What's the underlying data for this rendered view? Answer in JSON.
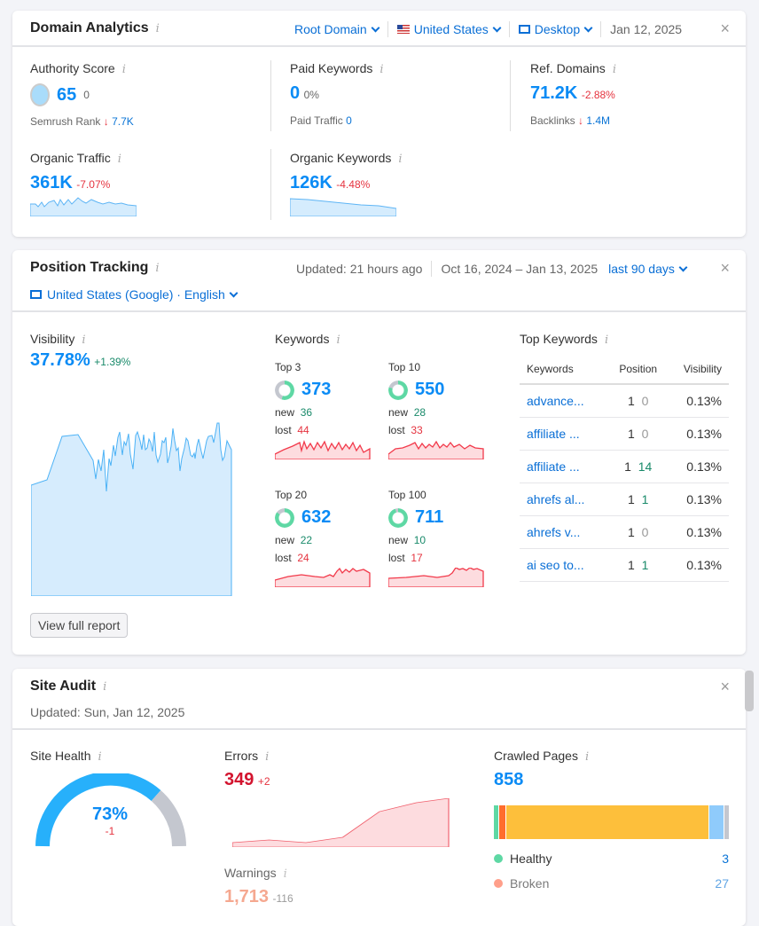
{
  "domain_analytics": {
    "title": "Domain Analytics",
    "root_domain": "Root Domain",
    "country": "United States",
    "device": "Desktop",
    "date": "Jan 12, 2025",
    "authority": {
      "label": "Authority Score",
      "value": "65",
      "change": "0",
      "rank_label": "Semrush Rank",
      "rank_value": "7.7K"
    },
    "paid": {
      "label": "Paid Keywords",
      "value": "0",
      "change": "0%",
      "traffic_label": "Paid Traffic",
      "traffic_value": "0"
    },
    "ref": {
      "label": "Ref. Domains",
      "value": "71.2K",
      "change": "-2.88%",
      "backlinks_label": "Backlinks",
      "backlinks_value": "1.4M"
    },
    "organic_traffic": {
      "label": "Organic Traffic",
      "value": "361K",
      "change": "-7.07%"
    },
    "organic_keywords": {
      "label": "Organic Keywords",
      "value": "126K",
      "change": "-4.48%"
    }
  },
  "position_tracking": {
    "title": "Position Tracking",
    "updated": "Updated: 21 hours ago",
    "range": "Oct 16, 2024 – Jan 13, 2025",
    "period": "last 90 days",
    "location": "United States (Google) · English",
    "visibility": {
      "label": "Visibility",
      "value": "37.78%",
      "change": "+1.39%"
    },
    "keywords": {
      "label": "Keywords",
      "groups": [
        {
          "label": "Top 3",
          "value": "373",
          "new": "36",
          "lost": "44",
          "fill": 0.55
        },
        {
          "label": "Top 10",
          "value": "550",
          "new": "28",
          "lost": "33",
          "fill": 0.8
        },
        {
          "label": "Top 20",
          "value": "632",
          "new": "22",
          "lost": "24",
          "fill": 0.85
        },
        {
          "label": "Top 100",
          "value": "711",
          "new": "10",
          "lost": "17",
          "fill": 0.95
        }
      ],
      "new_label": "new",
      "lost_label": "lost"
    },
    "top_keywords": {
      "label": "Top Keywords",
      "headers": [
        "Keywords",
        "Position",
        "Visibility"
      ],
      "rows": [
        {
          "kw": "advance...",
          "pos": "1",
          "chg": "0",
          "vis": "0.13%"
        },
        {
          "kw": "affiliate ...",
          "pos": "1",
          "chg": "0",
          "vis": "0.13%"
        },
        {
          "kw": "affiliate ...",
          "pos": "1",
          "chg": "14",
          "vis": "0.13%"
        },
        {
          "kw": "ahrefs al...",
          "pos": "1",
          "chg": "1",
          "vis": "0.13%"
        },
        {
          "kw": "ahrefs v...",
          "pos": "1",
          "chg": "0",
          "vis": "0.13%"
        },
        {
          "kw": "ai seo to...",
          "pos": "1",
          "chg": "1",
          "vis": "0.13%"
        }
      ]
    },
    "view_full_report": "View full report"
  },
  "site_audit": {
    "title": "Site Audit",
    "updated": "Updated: Sun, Jan 12, 2025",
    "health": {
      "label": "Site Health",
      "value": "73%",
      "change": "-1",
      "fraction": 0.73
    },
    "errors": {
      "label": "Errors",
      "value": "349",
      "change": "+2"
    },
    "warnings": {
      "label": "Warnings",
      "value": "1,713",
      "change": "-116"
    },
    "crawled": {
      "label": "Crawled Pages",
      "value": "858",
      "legend": [
        {
          "label": "Healthy",
          "value": "3",
          "color": "#5ed8a4"
        },
        {
          "label": "Broken",
          "value": "27",
          "color": "#ff6d4d"
        }
      ]
    }
  },
  "colors": {
    "accent": "#0a8bf5",
    "negative": "#e5333f",
    "positive": "#198a6a",
    "warning_bar": "#fdbf3b"
  }
}
